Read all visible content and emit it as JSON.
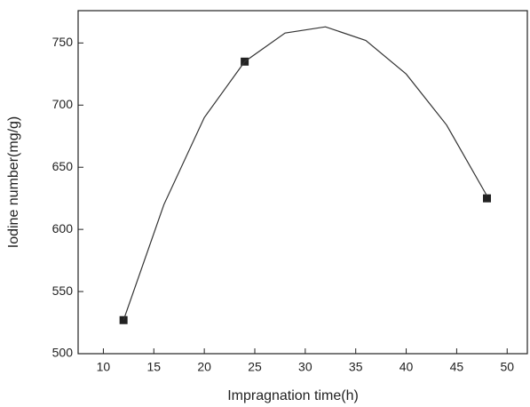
{
  "chart_data": {
    "type": "scatter",
    "xlabel": "Impragnation time(h)",
    "ylabel": "Iodine number(mg/g)",
    "series": [
      {
        "color": "#222222",
        "marker": "square",
        "x": [
          12,
          24,
          48
        ],
        "values": [
          527,
          735,
          625
        ]
      },
      {
        "color": "#333333",
        "line": true,
        "x": [
          12,
          16,
          20,
          24,
          28,
          32,
          36,
          40,
          44,
          48
        ],
        "values": [
          527,
          620,
          690,
          735,
          758,
          763,
          752,
          725,
          684,
          627
        ]
      }
    ],
    "xlim": [
      7.5,
      52
    ],
    "xticks": [
      10,
      15,
      20,
      25,
      30,
      35,
      40,
      45,
      50
    ],
    "ylim": [
      500,
      776
    ],
    "yticks": [
      500,
      550,
      600,
      650,
      700,
      750
    ]
  }
}
